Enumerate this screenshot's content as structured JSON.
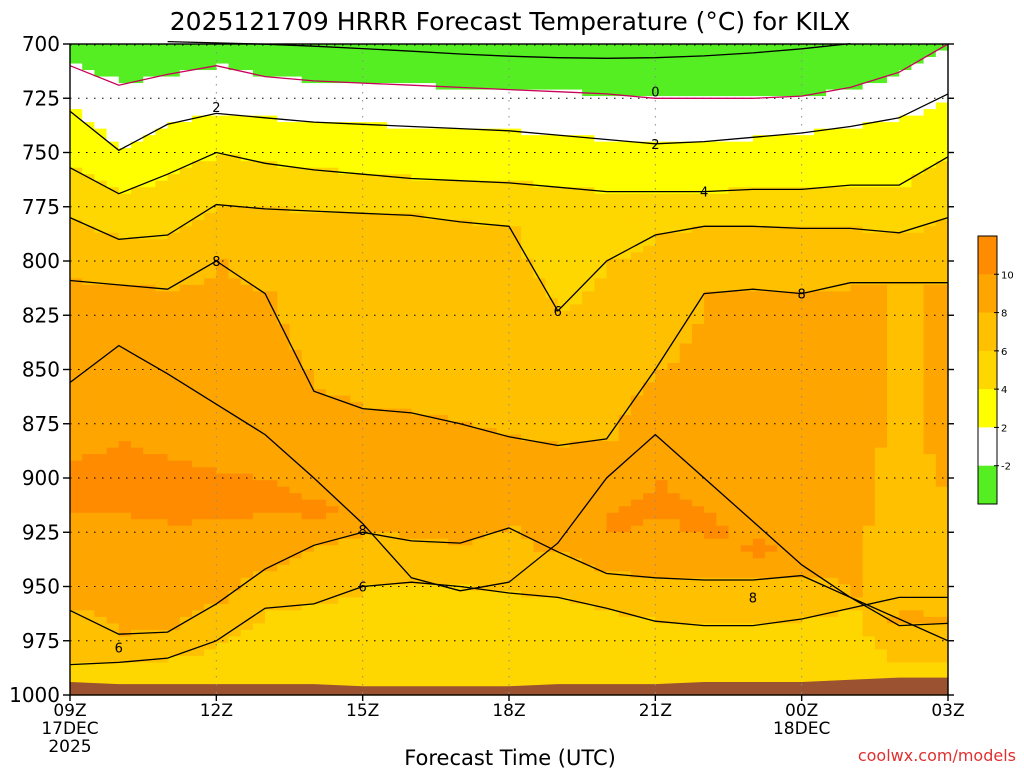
{
  "chart_data": {
    "type": "heatmap",
    "title": "2025121709 HRRR Forecast Temperature (°C) for KILX",
    "xlabel": "Forecast Time (UTC)",
    "ylabel": "",
    "x_ticks": [
      {
        "hour": 0,
        "label": "09Z",
        "sub": [
          "17DEC",
          "2025"
        ]
      },
      {
        "hour": 3,
        "label": "12Z",
        "sub": []
      },
      {
        "hour": 6,
        "label": "15Z",
        "sub": []
      },
      {
        "hour": 9,
        "label": "18Z",
        "sub": []
      },
      {
        "hour": 12,
        "label": "21Z",
        "sub": []
      },
      {
        "hour": 15,
        "label": "00Z",
        "sub": [
          "18DEC"
        ]
      },
      {
        "hour": 18,
        "label": "03Z",
        "sub": []
      }
    ],
    "xlim": [
      0,
      18
    ],
    "y_ticks": [
      700,
      725,
      750,
      775,
      800,
      825,
      850,
      875,
      900,
      925,
      950,
      975,
      1000
    ],
    "ylim": [
      700,
      1000
    ],
    "y_inverted": true,
    "ground_pressure": [
      994,
      995,
      995,
      995,
      995,
      995,
      996,
      996,
      996,
      996,
      995,
      995,
      995,
      994,
      994,
      994,
      993,
      992,
      992
    ],
    "contour_levels": [
      -2,
      0,
      2,
      4,
      6,
      8,
      10
    ],
    "contours": [
      {
        "level": -2,
        "hours": [
          2,
          3,
          4,
          5,
          6,
          7,
          8,
          9,
          10,
          11,
          12,
          13,
          14,
          15,
          16
        ],
        "pressures": [
          698.9,
          699.5,
          700.1,
          701,
          702.1,
          703.3,
          704.6,
          705.6,
          706.3,
          706.6,
          706.3,
          705.5,
          704.1,
          702.2,
          699.8
        ]
      },
      {
        "level": 0,
        "hours": [
          0,
          1,
          2,
          3,
          4,
          5,
          6,
          7,
          8,
          9,
          10,
          11,
          12,
          13,
          14,
          15,
          16,
          17,
          18
        ],
        "pressures": [
          710,
          719,
          714,
          710,
          715,
          717,
          718,
          719,
          720,
          721,
          722,
          723,
          725,
          725,
          725,
          724,
          720,
          713,
          700
        ]
      },
      {
        "level": 2,
        "hours": [
          0,
          1,
          2,
          3,
          4,
          5,
          6,
          7,
          8,
          9,
          10,
          11,
          12,
          13,
          14,
          15,
          16,
          17,
          18
        ],
        "pressures": [
          731,
          749,
          737,
          732,
          734,
          736,
          737,
          738,
          739,
          740,
          742,
          744,
          746,
          745,
          743,
          741,
          738,
          734,
          723
        ]
      },
      {
        "level": 4,
        "hours": [
          0,
          1,
          2,
          3,
          4,
          5,
          6,
          7,
          8,
          9,
          10,
          11,
          12,
          13,
          14,
          15,
          16,
          17,
          18
        ],
        "pressures": [
          757,
          769,
          760,
          750,
          755,
          758,
          760,
          762,
          763,
          764,
          766,
          768,
          768,
          768,
          767,
          767,
          765,
          765,
          752
        ]
      },
      {
        "level": 6,
        "hours": [
          0,
          1,
          2,
          3,
          4,
          5,
          6,
          7,
          8,
          9,
          10,
          11,
          12,
          13,
          14,
          15,
          16,
          17,
          18
        ],
        "pressures": [
          780,
          790,
          788,
          774,
          776,
          777,
          778,
          779,
          782,
          784,
          823,
          800,
          788,
          784,
          784,
          785,
          785,
          787,
          780
        ]
      },
      {
        "level": 8,
        "hours": [
          0,
          1,
          2,
          3,
          4,
          5,
          6,
          7,
          8,
          9,
          10,
          11,
          12,
          13,
          14,
          15,
          16,
          17,
          18
        ],
        "pressures": [
          809,
          811,
          813,
          800,
          815,
          860,
          868,
          870,
          875,
          881,
          885,
          882,
          850,
          815,
          813,
          815,
          810,
          810,
          810
        ]
      },
      {
        "level": 8,
        "hours": [
          0,
          1,
          2,
          3,
          4,
          5,
          6,
          7,
          8,
          9,
          10,
          11,
          12,
          13,
          14,
          15,
          16,
          17,
          18
        ],
        "pressures": [
          961,
          972,
          971,
          958,
          942,
          931,
          925,
          929,
          930,
          923,
          934,
          944,
          946,
          947,
          947,
          945,
          955,
          968,
          967
        ]
      },
      {
        "level": 10,
        "hours": [
          0,
          1,
          2,
          3,
          4,
          5,
          6,
          7,
          8,
          9,
          10,
          11,
          12,
          13,
          14,
          15,
          16,
          17,
          18
        ],
        "pressures": [
          856,
          839,
          852,
          866,
          880,
          900,
          921,
          946,
          952,
          948,
          930,
          900,
          880,
          900,
          920,
          940,
          955,
          965,
          975
        ]
      },
      {
        "level": 6,
        "hours": [
          0,
          1,
          2,
          3,
          4,
          5,
          6,
          7,
          8,
          9,
          10,
          11,
          12,
          13,
          14,
          15,
          16,
          17,
          18
        ],
        "pressures": [
          986,
          985,
          983,
          975,
          960,
          958,
          950,
          948,
          950,
          953,
          955,
          960,
          966,
          968,
          968,
          965,
          960,
          955,
          955
        ]
      }
    ],
    "contour_labels": [
      {
        "value": "0",
        "hour": 12,
        "pressure": 722
      },
      {
        "value": "2",
        "hour": 3,
        "pressure": 729
      },
      {
        "value": "2",
        "hour": 12,
        "pressure": 746
      },
      {
        "value": "4",
        "hour": 13,
        "pressure": 768
      },
      {
        "value": "6",
        "hour": 10,
        "pressure": 823
      },
      {
        "value": "8",
        "hour": 3,
        "pressure": 800
      },
      {
        "value": "8",
        "hour": 15,
        "pressure": 815
      },
      {
        "value": "8",
        "hour": 6,
        "pressure": 924
      },
      {
        "value": "8",
        "hour": 14,
        "pressure": 955
      },
      {
        "value": "6",
        "hour": 6,
        "pressure": 950
      },
      {
        "value": "6",
        "hour": 1,
        "pressure": 978
      }
    ],
    "colorbar": {
      "labels": [
        "-2",
        "2",
        "4",
        "6",
        "8",
        "10"
      ],
      "colors": [
        "#55ee22",
        "#ffffff",
        "#ffff00",
        "#ffd700",
        "#ffc000",
        "#ffa500",
        "#ff8c00"
      ]
    },
    "colors": {
      "ground": "#9b5230",
      "frame": "#000000",
      "contour_zero": "#c8005a",
      "credit": "#e03030"
    }
  },
  "credit": "coolwx.com/models"
}
